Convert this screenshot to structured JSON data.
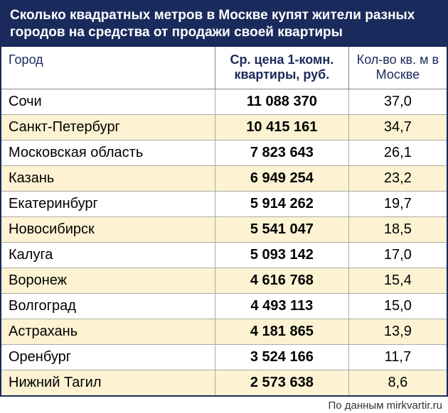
{
  "title": "Сколько квадратных метров в Москве купят жители разных городов на средства от продажи своей квартиры",
  "columns": {
    "city": "Город",
    "price": "Ср. цена 1-комн. квартиры, руб.",
    "sqm": "Кол-во кв. м в Москве"
  },
  "rows": [
    {
      "city": "Сочи",
      "price": "11 088 370",
      "sqm": "37,0"
    },
    {
      "city": "Санкт-Петербург",
      "price": "10 415 161",
      "sqm": "34,7"
    },
    {
      "city": "Московская область",
      "price": "7 823 643",
      "sqm": "26,1"
    },
    {
      "city": "Казань",
      "price": "6 949 254",
      "sqm": "23,2"
    },
    {
      "city": "Екатеринбург",
      "price": "5 914 262",
      "sqm": "19,7"
    },
    {
      "city": "Новосибирск",
      "price": "5 541 047",
      "sqm": "18,5"
    },
    {
      "city": "Калуга",
      "price": "5 093 142",
      "sqm": "17,0"
    },
    {
      "city": "Воронеж",
      "price": "4 616 768",
      "sqm": "15,4"
    },
    {
      "city": "Волгоград",
      "price": "4 493 113",
      "sqm": "15,0"
    },
    {
      "city": "Астрахань",
      "price": "4 181 865",
      "sqm": "13,9"
    },
    {
      "city": "Оренбург",
      "price": "3 524 166",
      "sqm": "11,7"
    },
    {
      "city": "Нижний Тагил",
      "price": "2 573 638",
      "sqm": "8,6"
    }
  ],
  "source": "По данным mirkvartir.ru",
  "styling": {
    "header_bg": "#1a2a5c",
    "header_text": "#ffffff",
    "alt_row_bg": "#fdf3d3",
    "border_color": "#888888",
    "title_fontsize": 19,
    "cell_fontsize": 20
  }
}
